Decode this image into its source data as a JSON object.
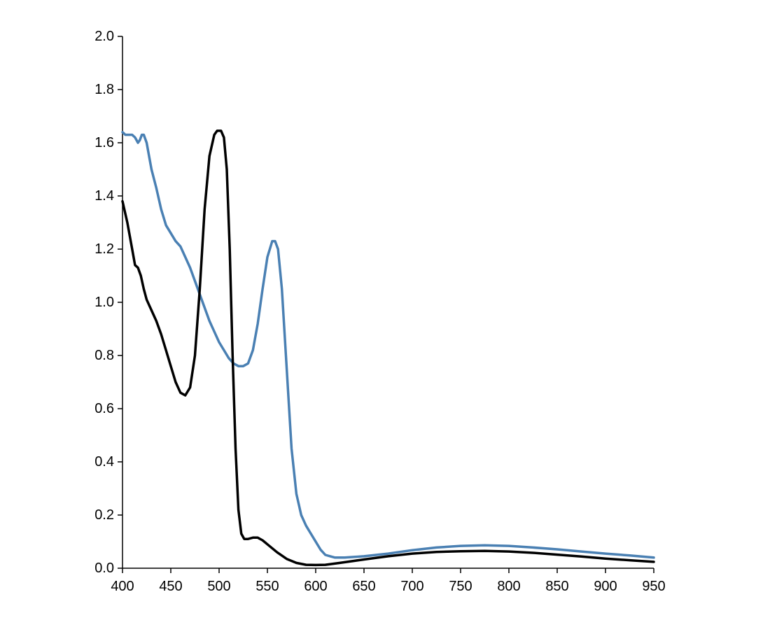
{
  "chart_data": {
    "type": "line",
    "title": "",
    "xlabel": "",
    "ylabel": "",
    "xlim": [
      400,
      950
    ],
    "ylim": [
      0,
      2.0
    ],
    "grid": false,
    "legend": "none",
    "x_ticks": [
      "400",
      "450",
      "500",
      "550",
      "600",
      "650",
      "700",
      "750",
      "800",
      "850",
      "900",
      "950"
    ],
    "y_ticks": [
      "0.0",
      "0.2",
      "0.4",
      "0.6",
      "0.8",
      "1.0",
      "1.2",
      "1.4",
      "1.6",
      "1.8",
      "2.0"
    ],
    "series": [
      {
        "color": "#4a80b3",
        "points": [
          [
            400,
            1.64
          ],
          [
            403,
            1.63
          ],
          [
            406,
            1.63
          ],
          [
            410,
            1.63
          ],
          [
            413,
            1.62
          ],
          [
            416,
            1.6
          ],
          [
            418,
            1.61
          ],
          [
            420,
            1.63
          ],
          [
            422,
            1.63
          ],
          [
            425,
            1.6
          ],
          [
            430,
            1.5
          ],
          [
            435,
            1.43
          ],
          [
            440,
            1.35
          ],
          [
            445,
            1.29
          ],
          [
            450,
            1.26
          ],
          [
            455,
            1.23
          ],
          [
            460,
            1.21
          ],
          [
            465,
            1.17
          ],
          [
            470,
            1.13
          ],
          [
            475,
            1.08
          ],
          [
            480,
            1.03
          ],
          [
            485,
            0.98
          ],
          [
            490,
            0.93
          ],
          [
            495,
            0.89
          ],
          [
            500,
            0.85
          ],
          [
            505,
            0.82
          ],
          [
            510,
            0.79
          ],
          [
            515,
            0.77
          ],
          [
            520,
            0.76
          ],
          [
            525,
            0.76
          ],
          [
            530,
            0.77
          ],
          [
            535,
            0.82
          ],
          [
            540,
            0.92
          ],
          [
            545,
            1.05
          ],
          [
            550,
            1.17
          ],
          [
            555,
            1.23
          ],
          [
            558,
            1.23
          ],
          [
            561,
            1.2
          ],
          [
            565,
            1.05
          ],
          [
            570,
            0.75
          ],
          [
            575,
            0.45
          ],
          [
            580,
            0.28
          ],
          [
            585,
            0.2
          ],
          [
            590,
            0.16
          ],
          [
            595,
            0.13
          ],
          [
            600,
            0.1
          ],
          [
            605,
            0.07
          ],
          [
            610,
            0.05
          ],
          [
            615,
            0.045
          ],
          [
            620,
            0.04
          ],
          [
            630,
            0.04
          ],
          [
            650,
            0.045
          ],
          [
            675,
            0.055
          ],
          [
            700,
            0.068
          ],
          [
            725,
            0.078
          ],
          [
            750,
            0.084
          ],
          [
            775,
            0.086
          ],
          [
            800,
            0.084
          ],
          [
            825,
            0.078
          ],
          [
            850,
            0.071
          ],
          [
            875,
            0.063
          ],
          [
            900,
            0.055
          ],
          [
            925,
            0.048
          ],
          [
            950,
            0.04
          ]
        ]
      },
      {
        "color": "#000000",
        "points": [
          [
            400,
            1.38
          ],
          [
            405,
            1.3
          ],
          [
            410,
            1.2
          ],
          [
            413,
            1.14
          ],
          [
            416,
            1.13
          ],
          [
            419,
            1.1
          ],
          [
            422,
            1.05
          ],
          [
            425,
            1.01
          ],
          [
            430,
            0.97
          ],
          [
            435,
            0.93
          ],
          [
            440,
            0.88
          ],
          [
            445,
            0.82
          ],
          [
            450,
            0.76
          ],
          [
            455,
            0.7
          ],
          [
            460,
            0.66
          ],
          [
            465,
            0.65
          ],
          [
            470,
            0.68
          ],
          [
            475,
            0.8
          ],
          [
            480,
            1.05
          ],
          [
            485,
            1.35
          ],
          [
            490,
            1.55
          ],
          [
            495,
            1.63
          ],
          [
            498,
            1.645
          ],
          [
            502,
            1.645
          ],
          [
            505,
            1.62
          ],
          [
            508,
            1.5
          ],
          [
            511,
            1.2
          ],
          [
            514,
            0.8
          ],
          [
            517,
            0.45
          ],
          [
            520,
            0.22
          ],
          [
            523,
            0.13
          ],
          [
            526,
            0.11
          ],
          [
            530,
            0.11
          ],
          [
            535,
            0.115
          ],
          [
            540,
            0.115
          ],
          [
            545,
            0.105
          ],
          [
            550,
            0.09
          ],
          [
            560,
            0.06
          ],
          [
            570,
            0.035
          ],
          [
            580,
            0.02
          ],
          [
            590,
            0.013
          ],
          [
            600,
            0.012
          ],
          [
            610,
            0.013
          ],
          [
            625,
            0.02
          ],
          [
            650,
            0.033
          ],
          [
            675,
            0.045
          ],
          [
            700,
            0.055
          ],
          [
            725,
            0.061
          ],
          [
            750,
            0.064
          ],
          [
            775,
            0.065
          ],
          [
            800,
            0.063
          ],
          [
            825,
            0.058
          ],
          [
            850,
            0.051
          ],
          [
            875,
            0.044
          ],
          [
            900,
            0.036
          ],
          [
            925,
            0.03
          ],
          [
            950,
            0.024
          ]
        ]
      }
    ]
  }
}
